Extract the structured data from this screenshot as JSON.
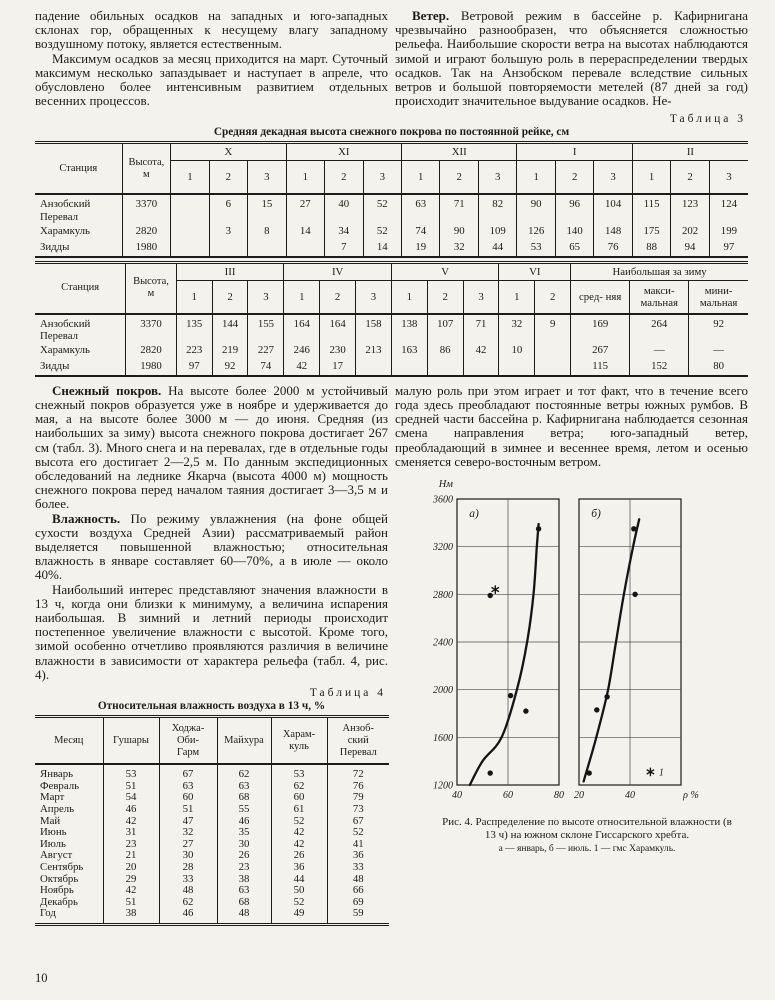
{
  "page": {
    "number": "10"
  },
  "colors": {
    "paper": "#f4f2ed",
    "ink": "#1d1c1a"
  },
  "content": {
    "top_left": [
      {
        "indent": false,
        "lead": "",
        "text": "падение обильных осадков на западных и юго-западных склонах гор, обращенных к несущему влагу западному воздушному потоку, является естественным."
      },
      {
        "indent": true,
        "lead": "",
        "text": "Максимум осадков за месяц приходится на март. Суточный максимум несколько запаздывает и наступает в апреле, что обусловлено более интенсивным развитием отдельных весенних процессов."
      }
    ],
    "top_right": [
      {
        "indent": true,
        "lead": "Ветер.",
        "text": "Ветровой режим в бассейне р. Кафирнигана чрезвычайно разнообразен, что объясняется сложностью рельефа. Наибольшие скорости ветра на высотах наблюдаются зимой и играют большую роль в перераспределении твердых осадков. Так на Анзобском перевале вследствие сильных ветров и большой повторяемости метелей (87 дней за год) происходит значительное выдувание осадков. Не-"
      }
    ],
    "bottom_left": [
      {
        "indent": true,
        "lead": "Снежный покров.",
        "text": "На высоте более 2000 м устойчивый снежный покров образуется уже в ноябре и удерживается до мая, а на высоте более 3000 м — до июня. Средняя (из наибольших за зиму) высота снежного покрова достигает 267 см (табл. 3). Много снега и на перевалах, где в отдельные годы высота его достигает 2—2,5 м. По данным экспедиционных обследований на леднике Якарча (высота 4000 м) мощность снежного покрова перед началом таяния достигает 3—3,5 м и более."
      },
      {
        "indent": true,
        "lead": "Влажность.",
        "text": "По режиму увлажнения (на фоне общей сухости воздуха Средней Азии) рассматриваемый район выделяется повышенной влажностью; относительная влажность в январе составляет 60—70%, а в июле — около 40%."
      },
      {
        "indent": true,
        "lead": "",
        "text": "Наибольший интерес представляют значения влажности в 13 ч, когда они близки к минимуму, а величина испарения наибольшая. В зимний и летний периоды происходит постепенное увеличение влажности с высотой. Кроме того, зимой особенно отчетливо проявляются различия в величине влажности в зависимости от характера рельефа (табл. 4, рис. 4)."
      }
    ],
    "bottom_right": [
      {
        "indent": false,
        "lead": "",
        "text": "малую роль при этом играет и тот факт, что в течение всего года здесь преобладают постоянные ветры южных румбов. В средней части бассейна р. Кафирнигана наблюдается сезонная смена направления ветра; юго-западный ветер, преобладающий в зимнее и весеннее время, летом и осенью сменяется северо-восточным ветром."
      }
    ]
  },
  "tables": {
    "table3": {
      "label": "Таблица 3",
      "title": "Средняя декадная высота снежного покрова по постоянной рейке, см",
      "station_header": "Станция",
      "height_header": "Высота,\nм",
      "part1": {
        "groups": [
          {
            "name": "X",
            "subs": [
              "1",
              "2",
              "3"
            ]
          },
          {
            "name": "XI",
            "subs": [
              "1",
              "2",
              "3"
            ]
          },
          {
            "name": "XII",
            "subs": [
              "1",
              "2",
              "3"
            ]
          },
          {
            "name": "I",
            "subs": [
              "1",
              "2",
              "3"
            ]
          },
          {
            "name": "II",
            "subs": [
              "1",
              "2",
              "3"
            ]
          }
        ],
        "rows": [
          {
            "station": "Анзобский\nПеревал",
            "height": "3370",
            "values": [
              "",
              "6",
              "15",
              "27",
              "40",
              "52",
              "63",
              "71",
              "82",
              "90",
              "96",
              "104",
              "115",
              "123",
              "124"
            ]
          },
          {
            "station": "Харамкуль",
            "height": "2820",
            "values": [
              "",
              "3",
              "8",
              "14",
              "34",
              "52",
              "74",
              "90",
              "109",
              "126",
              "140",
              "148",
              "175",
              "202",
              "199"
            ]
          },
          {
            "station": "Зидды",
            "height": "1980",
            "values": [
              "",
              "",
              "",
              "",
              "7",
              "14",
              "19",
              "32",
              "44",
              "53",
              "65",
              "76",
              "88",
              "94",
              "97"
            ]
          }
        ]
      },
      "part2": {
        "groups": [
          {
            "name": "III",
            "subs": [
              "1",
              "2",
              "3"
            ]
          },
          {
            "name": "IV",
            "subs": [
              "1",
              "2",
              "3"
            ]
          },
          {
            "name": "V",
            "subs": [
              "1",
              "2",
              "3"
            ]
          },
          {
            "name": "VI",
            "subs": [
              "1",
              "2"
            ]
          },
          {
            "name": "Наибольшая за зиму",
            "subs": [
              "сред-\nняя",
              "макси-\nмальная",
              "мини-\nмальная"
            ]
          }
        ],
        "rows": [
          {
            "station": "Анзобский\nПеревал",
            "height": "3370",
            "values": [
              "135",
              "144",
              "155",
              "164",
              "164",
              "158",
              "138",
              "107",
              "71",
              "32",
              "9",
              "169",
              "264",
              "92"
            ]
          },
          {
            "station": "Харамкуль",
            "height": "2820",
            "values": [
              "223",
              "219",
              "227",
              "246",
              "230",
              "213",
              "163",
              "86",
              "42",
              "10",
              "",
              "267",
              "—",
              "—"
            ]
          },
          {
            "station": "Зидды",
            "height": "1980",
            "values": [
              "97",
              "92",
              "74",
              "42",
              "17",
              "",
              "",
              "",
              "",
              "",
              "",
              "115",
              "152",
              "80"
            ]
          }
        ]
      }
    },
    "table4": {
      "label": "Таблица 4",
      "title": "Относительная влажность воздуха в 13 ч, %",
      "columns": [
        "Месяц",
        "Гушары",
        "Ходжа-\nОби-\nГарм",
        "Майхура",
        "Харам-\nкуль",
        "Анзоб-\nский\nПеревал"
      ],
      "rows": [
        [
          "Январь",
          "53",
          "67",
          "62",
          "53",
          "72"
        ],
        [
          "Февраль",
          "51",
          "63",
          "63",
          "62",
          "76"
        ],
        [
          "Март",
          "54",
          "60",
          "68",
          "60",
          "79"
        ],
        [
          "Апрель",
          "46",
          "51",
          "55",
          "61",
          "73"
        ],
        [
          "Май",
          "42",
          "47",
          "46",
          "52",
          "67"
        ],
        [
          "Июнь",
          "31",
          "32",
          "35",
          "42",
          "52"
        ],
        [
          "Июль",
          "23",
          "27",
          "30",
          "42",
          "41"
        ],
        [
          "Август",
          "21",
          "30",
          "26",
          "26",
          "36"
        ],
        [
          "Сентябрь",
          "20",
          "28",
          "23",
          "36",
          "33"
        ],
        [
          "Октябрь",
          "29",
          "33",
          "38",
          "44",
          "48"
        ],
        [
          "Ноябрь",
          "42",
          "48",
          "63",
          "50",
          "66"
        ],
        [
          "Декабрь",
          "51",
          "62",
          "68",
          "52",
          "69"
        ],
        [
          "Год",
          "38",
          "46",
          "48",
          "49",
          "59"
        ]
      ]
    }
  },
  "figure": {
    "caption": "Рис. 4. Распределение по высоте относительной влажности (в 13 ч) на южном склоне Гиссарского хребта.",
    "caption_note": "а — январь, б — июль. 1 — гмс Харамкуль."
  },
  "chart_data": {
    "type": "line",
    "title": "Рис. 4. Распределение по высоте относительной влажности (в 13 ч) на южном склоне Гиссарского хребта",
    "ylabel": "Нм",
    "ylim": [
      1200,
      3600
    ],
    "yticks": [
      1200,
      1600,
      2000,
      2400,
      2800,
      3200,
      3600
    ],
    "grid": true,
    "panels": [
      {
        "label": "а)",
        "note": "январь",
        "xlim": [
          40,
          80
        ],
        "xticks": [
          {
            "v": 40,
            "t": "40"
          },
          {
            "v": 60,
            "t": "60"
          },
          {
            "v": 80,
            "t": "80"
          }
        ],
        "curve": [
          [
            45,
            1200
          ],
          [
            50,
            1400
          ],
          [
            57.5,
            1600
          ],
          [
            63.5,
            2000
          ],
          [
            67.5,
            2400
          ],
          [
            70,
            2800
          ],
          [
            71.3,
            3200
          ],
          [
            72,
            3390
          ]
        ],
        "points": [
          [
            53,
            1300
          ],
          [
            67,
            1820
          ],
          [
            61,
            1950
          ],
          [
            53,
            2790
          ],
          [
            72,
            3350
          ]
        ],
        "stars": [
          [
            55,
            2840
          ]
        ]
      },
      {
        "label": "б)",
        "note": "июль",
        "xlim": [
          20,
          60
        ],
        "xticks": [
          {
            "v": 20,
            "t": "20"
          },
          {
            "v": 40,
            "t": "40"
          },
          {
            "v": 60,
            "t": "ρ %"
          }
        ],
        "curve": [
          [
            21.8,
            1230
          ],
          [
            26.8,
            1600
          ],
          [
            31.4,
            2000
          ],
          [
            34.5,
            2400
          ],
          [
            37.6,
            2800
          ],
          [
            41.2,
            3200
          ],
          [
            43.6,
            3430
          ]
        ],
        "points": [
          [
            24,
            1300
          ],
          [
            27,
            1830
          ],
          [
            31,
            1940
          ],
          [
            42,
            2800
          ],
          [
            41.5,
            3350
          ]
        ],
        "stars": [
          [
            48,
            1310
          ]
        ],
        "star_label": "1"
      }
    ]
  }
}
